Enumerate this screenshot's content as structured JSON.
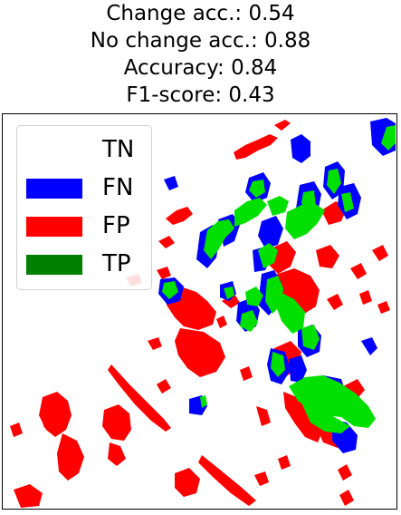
{
  "title": {
    "lines": [
      "Change acc.: 0.54",
      "No change acc.: 0.88",
      "Accuracy: 0.84",
      "F1-score: 0.43"
    ]
  },
  "legend": {
    "placement": "top-left",
    "items": [
      {
        "label": "TN",
        "color": "#ffffff"
      },
      {
        "label": "FN",
        "color": "#0000ff"
      },
      {
        "label": "FP",
        "color": "#ff0000"
      },
      {
        "label": "TP",
        "color": "#008000"
      }
    ]
  },
  "map": {
    "colors": {
      "tn": "#ffffff",
      "fn": "#0000ff",
      "fp": "#ff0000",
      "tp": "#00e000"
    }
  }
}
